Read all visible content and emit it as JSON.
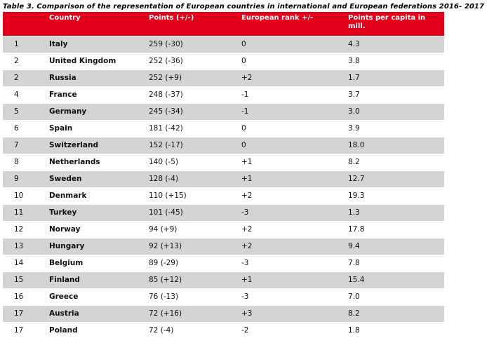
{
  "caption": "Table 3. Comparison of the representation of European countries in international and European federations 2016- 2017",
  "columns": {
    "country": "Country",
    "points": "Points (+/-)",
    "european_rank": "European rank +/-",
    "points_per_capita": "Points per capita in mill."
  },
  "rows": [
    {
      "rank": "1",
      "country": "Italy",
      "points": "259 (-30)",
      "european_rank": "0",
      "points_per_capita": "4.3"
    },
    {
      "rank": "2",
      "country": "United Kingdom",
      "points": "252 (-36)",
      "european_rank": "0",
      "points_per_capita": "3.8"
    },
    {
      "rank": "2",
      "country": "Russia",
      "points": "252 (+9)",
      "european_rank": "+2",
      "points_per_capita": "1.7"
    },
    {
      "rank": "4",
      "country": "France",
      "points": "248 (-37)",
      "european_rank": "-1",
      "points_per_capita": "3.7"
    },
    {
      "rank": "5",
      "country": "Germany",
      "points": "245 (-34)",
      "european_rank": "-1",
      "points_per_capita": "3.0"
    },
    {
      "rank": "6",
      "country": "Spain",
      "points": "181 (-42)",
      "european_rank": "0",
      "points_per_capita": "3.9"
    },
    {
      "rank": "7",
      "country": "Switzerland",
      "points": "152 (-17)",
      "european_rank": "0",
      "points_per_capita": "18.0"
    },
    {
      "rank": "8",
      "country": "Netherlands",
      "points": "140 (-5)",
      "european_rank": "+1",
      "points_per_capita": "8.2"
    },
    {
      "rank": "9",
      "country": "Sweden",
      "points": "128 (-4)",
      "european_rank": "+1",
      "points_per_capita": "12.7"
    },
    {
      "rank": "10",
      "country": "Denmark",
      "points": "110 (+15)",
      "european_rank": "+2",
      "points_per_capita": "19.3"
    },
    {
      "rank": "11",
      "country": "Turkey",
      "points": "101 (-45)",
      "european_rank": "-3",
      "points_per_capita": "1.3"
    },
    {
      "rank": "12",
      "country": "Norway",
      "points": "94 (+9)",
      "european_rank": "+2",
      "points_per_capita": "17.8"
    },
    {
      "rank": "13",
      "country": "Hungary",
      "points": "92 (+13)",
      "european_rank": "+2",
      "points_per_capita": "9.4"
    },
    {
      "rank": "14",
      "country": "Belgium",
      "points": "89 (-29)",
      "european_rank": "-3",
      "points_per_capita": "7.8"
    },
    {
      "rank": "15",
      "country": "Finland",
      "points": "85 (+12)",
      "european_rank": "+1",
      "points_per_capita": "15.4"
    },
    {
      "rank": "16",
      "country": "Greece",
      "points": "76 (-13)",
      "european_rank": "-3",
      "points_per_capita": "7.0"
    },
    {
      "rank": "17",
      "country": "Austria",
      "points": "72 (+16)",
      "european_rank": "+3",
      "points_per_capita": "8.2"
    },
    {
      "rank": "17",
      "country": "Poland",
      "points": "72 (-4)",
      "european_rank": "-2",
      "points_per_capita": "1.8"
    }
  ],
  "colors": {
    "header_background": "#e2001a",
    "header_text": "#ffffff",
    "shaded_row": "#d4d4d4"
  }
}
